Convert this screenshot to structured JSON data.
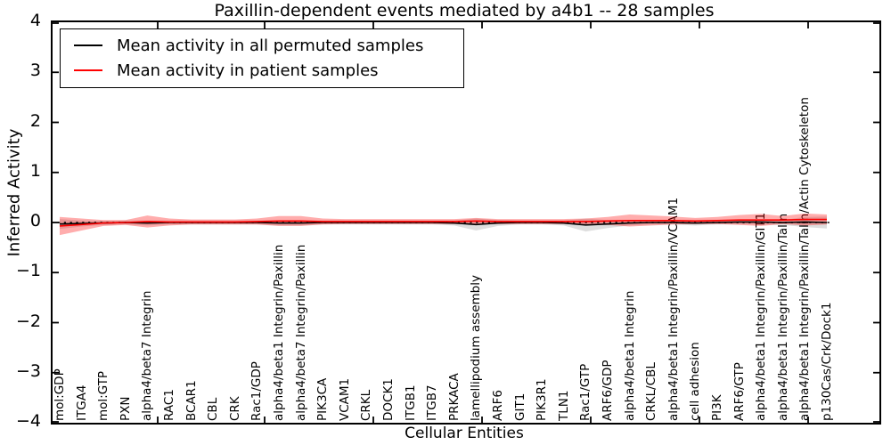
{
  "chart_data": {
    "type": "line",
    "title": "Paxillin-dependent events mediated by a4b1 -- 28 samples",
    "xlabel": "Cellular Entities",
    "ylabel": "Inferred Activity",
    "ylim": [
      -4,
      4
    ],
    "yticks": [
      4,
      3,
      2,
      1,
      0,
      -1,
      -2,
      -3,
      -4
    ],
    "yticklabels": [
      "4",
      "3",
      "2",
      "1",
      "0",
      "−1",
      "−2",
      "−3",
      "−4"
    ],
    "grid": false,
    "legend_position": "upper left",
    "zero_line": {
      "y": 0,
      "style": "dotted",
      "color": "#000000"
    },
    "categories": [
      "mol:GDP",
      "ITGA4",
      "mol:GTP",
      "PXN",
      "alpha4/beta7 Integrin",
      "RAC1",
      "BCAR1",
      "CBL",
      "CRK",
      "Rac1/GDP",
      "alpha4/beta1 Integrin/Paxillin",
      "alpha4/beta7 Integrin/Paxillin",
      "PIK3CA",
      "VCAM1",
      "CRKL",
      "DOCK1",
      "ITGB1",
      "ITGB7",
      "PRKACA",
      "lamellipodium assembly",
      "ARF6",
      "GIT1",
      "PIK3R1",
      "TLN1",
      "Rac1/GTP",
      "ARF6/GDP",
      "alpha4/beta1 Integrin",
      "CRKL/CBL",
      "alpha4/beta1 Integrin/Paxillin/VCAM1",
      "cell adhesion",
      "PI3K",
      "ARF6/GTP",
      "alpha4/beta1 Integrin/Paxillin/GIT1",
      "alpha4/beta1 Integrin/Paxillin/Talin",
      "alpha4/beta1 Integrin/Paxillin/Talin/Actin Cytoskeleton",
      "p130Cas/Crk/Dock1"
    ],
    "series": [
      {
        "name": "Mean activity in all permuted samples",
        "color": "#000000",
        "band_color": "#000000",
        "band_opacity": 0.13,
        "values": [
          -0.03,
          -0.02,
          -0.01,
          0,
          -0.01,
          0,
          0,
          0,
          0,
          0,
          -0.01,
          -0.01,
          0,
          0,
          0,
          0,
          0,
          0,
          -0.01,
          -0.04,
          -0.01,
          0,
          0,
          -0.01,
          -0.05,
          -0.03,
          -0.01,
          0,
          0,
          -0.01,
          0,
          0.01,
          0.01,
          0,
          0.01,
          0
        ],
        "band_halfwidth": [
          0.1,
          0.06,
          0.04,
          0.04,
          0.05,
          0.04,
          0.04,
          0.04,
          0.04,
          0.04,
          0.05,
          0.05,
          0.04,
          0.04,
          0.04,
          0.04,
          0.04,
          0.04,
          0.05,
          0.12,
          0.06,
          0.04,
          0.04,
          0.05,
          0.13,
          0.08,
          0.05,
          0.04,
          0.04,
          0.05,
          0.04,
          0.04,
          0.05,
          0.05,
          0.1,
          0.12
        ]
      },
      {
        "name": "Mean activity in patient samples",
        "color": "#ff0000",
        "band_color": "#ff0000",
        "band_opacity": 0.32,
        "values": [
          -0.07,
          -0.04,
          -0.01,
          0,
          0.02,
          0.01,
          0.01,
          0.01,
          0.01,
          0.02,
          0.03,
          0.03,
          0.02,
          0.02,
          0.02,
          0.02,
          0.02,
          0.02,
          0.02,
          0.03,
          0.02,
          0.02,
          0.02,
          0.02,
          0.02,
          0.03,
          0.04,
          0.04,
          0.04,
          0.03,
          0.04,
          0.05,
          0.05,
          0.05,
          0.06,
          0.06
        ],
        "band_halfwidth": [
          0.18,
          0.12,
          0.06,
          0.05,
          0.12,
          0.07,
          0.05,
          0.05,
          0.05,
          0.06,
          0.1,
          0.1,
          0.06,
          0.05,
          0.05,
          0.05,
          0.05,
          0.05,
          0.05,
          0.06,
          0.05,
          0.05,
          0.05,
          0.05,
          0.06,
          0.08,
          0.12,
          0.1,
          0.08,
          0.06,
          0.07,
          0.1,
          0.12,
          0.08,
          0.12,
          0.1
        ]
      }
    ]
  }
}
